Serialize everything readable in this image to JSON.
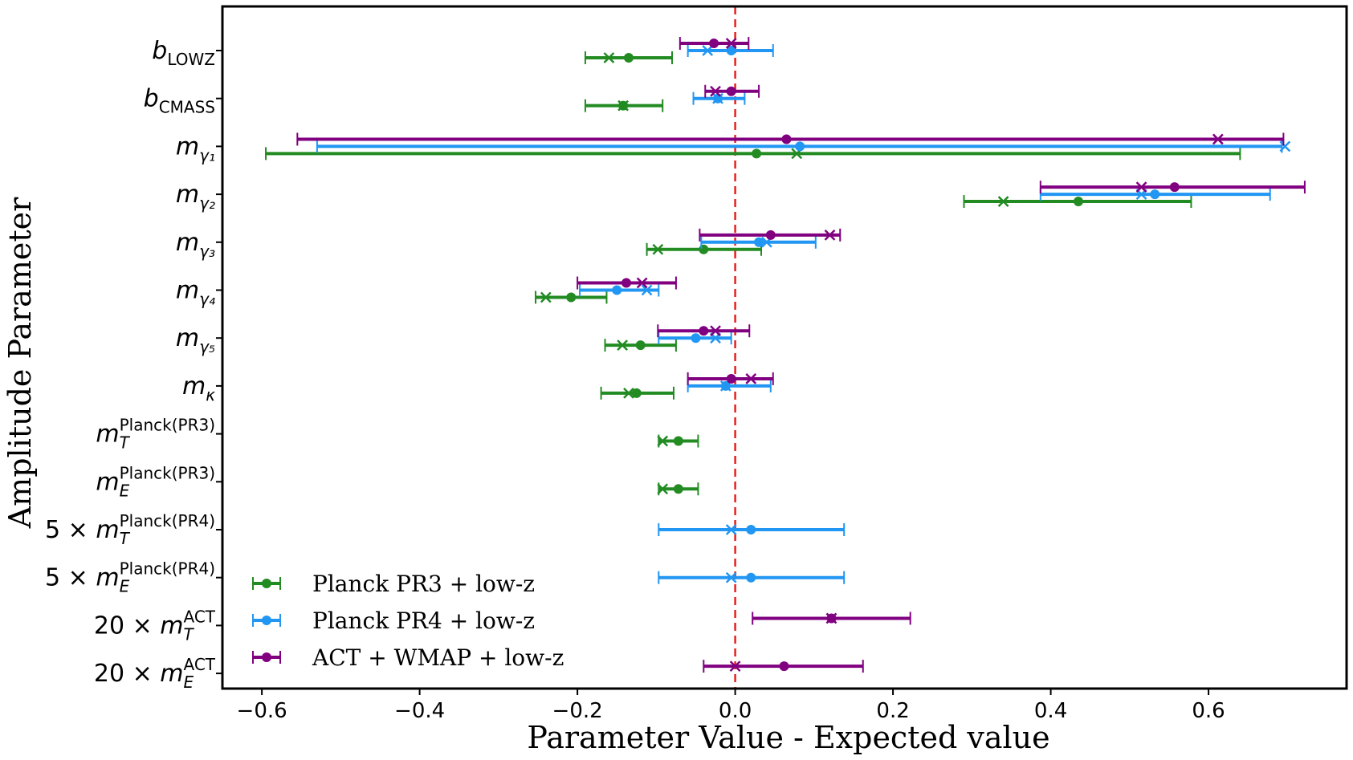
{
  "chart_data": {
    "type": "errorbar",
    "title": "",
    "xlabel": "Parameter Value - Expected value",
    "ylabel": "Amplitude Parameter",
    "xlim": [
      -0.65,
      0.775
    ],
    "xticks": [
      -0.6,
      -0.4,
      -0.2,
      0.0,
      0.2,
      0.4,
      0.6
    ],
    "xtick_labels": [
      "−0.6",
      "−0.4",
      "−0.2",
      "0.0",
      "0.2",
      "0.4",
      "0.6"
    ],
    "reference_line": {
      "x": 0.0,
      "style": "dashed",
      "color": "#e8201b"
    },
    "legend_position": "bottom-left",
    "categories": [
      {
        "id": "bLOWZ",
        "prefix": "",
        "base": "b",
        "base_italic": true,
        "sub": "LOWZ",
        "sub_italic": false,
        "sup": ""
      },
      {
        "id": "bCMASS",
        "prefix": "",
        "base": "b",
        "base_italic": true,
        "sub": "CMASS",
        "sub_italic": false,
        "sup": ""
      },
      {
        "id": "mg1",
        "prefix": "",
        "base": "m",
        "base_italic": true,
        "sub": "γ₁",
        "sub_italic": true,
        "sup": ""
      },
      {
        "id": "mg2",
        "prefix": "",
        "base": "m",
        "base_italic": true,
        "sub": "γ₂",
        "sub_italic": true,
        "sup": ""
      },
      {
        "id": "mg3",
        "prefix": "",
        "base": "m",
        "base_italic": true,
        "sub": "γ₃",
        "sub_italic": true,
        "sup": ""
      },
      {
        "id": "mg4",
        "prefix": "",
        "base": "m",
        "base_italic": true,
        "sub": "γ₄",
        "sub_italic": true,
        "sup": ""
      },
      {
        "id": "mg5",
        "prefix": "",
        "base": "m",
        "base_italic": true,
        "sub": "γ₅",
        "sub_italic": true,
        "sup": ""
      },
      {
        "id": "mk",
        "prefix": "",
        "base": "m",
        "base_italic": true,
        "sub": "κ",
        "sub_italic": true,
        "sup": ""
      },
      {
        "id": "mT_PR3",
        "prefix": "",
        "base": "m",
        "base_italic": true,
        "sub": "T",
        "sub_italic": true,
        "sup": "Planck(PR3)"
      },
      {
        "id": "mE_PR3",
        "prefix": "",
        "base": "m",
        "base_italic": true,
        "sub": "E",
        "sub_italic": true,
        "sup": "Planck(PR3)"
      },
      {
        "id": "mT_PR4",
        "prefix": "5 × ",
        "base": "m",
        "base_italic": true,
        "sub": "T",
        "sub_italic": true,
        "sup": "Planck(PR4)"
      },
      {
        "id": "mE_PR4",
        "prefix": "5 × ",
        "base": "m",
        "base_italic": true,
        "sub": "E",
        "sub_italic": true,
        "sup": "Planck(PR4)"
      },
      {
        "id": "mT_ACT",
        "prefix": "20 × ",
        "base": "m",
        "base_italic": true,
        "sub": "T",
        "sub_italic": true,
        "sup": "ACT"
      },
      {
        "id": "mE_ACT",
        "prefix": "20 × ",
        "base": "m",
        "base_italic": true,
        "sub": "E",
        "sub_italic": true,
        "sup": "ACT"
      }
    ],
    "series": [
      {
        "name": "Planck PR3 + low-z",
        "color": "#228b22",
        "offset_rows": 0.25,
        "points": [
          {
            "cat": 0,
            "mean": -0.135,
            "lo": -0.19,
            "hi": -0.08,
            "best": -0.16
          },
          {
            "cat": 1,
            "mean": -0.142,
            "lo": -0.19,
            "hi": -0.092,
            "best": -0.142
          },
          {
            "cat": 2,
            "mean": 0.027,
            "lo": -0.595,
            "hi": 0.64,
            "best": 0.078
          },
          {
            "cat": 3,
            "mean": 0.435,
            "lo": 0.29,
            "hi": 0.578,
            "best": 0.34
          },
          {
            "cat": 4,
            "mean": -0.04,
            "lo": -0.112,
            "hi": 0.033,
            "best": -0.098
          },
          {
            "cat": 5,
            "mean": -0.208,
            "lo": -0.253,
            "hi": -0.163,
            "best": -0.24
          },
          {
            "cat": 6,
            "mean": -0.12,
            "lo": -0.165,
            "hi": -0.075,
            "best": -0.143
          },
          {
            "cat": 7,
            "mean": -0.125,
            "lo": -0.17,
            "hi": -0.078,
            "best": -0.135
          },
          {
            "cat": 8,
            "mean": -0.072,
            "lo": -0.097,
            "hi": -0.047,
            "best": -0.092
          },
          {
            "cat": 9,
            "mean": -0.072,
            "lo": -0.097,
            "hi": -0.047,
            "best": -0.092
          }
        ]
      },
      {
        "name": "Planck PR4 + low-z",
        "color": "#2196f3",
        "offset_rows": 0.0,
        "points": [
          {
            "cat": 0,
            "mean": -0.005,
            "lo": -0.06,
            "hi": 0.048,
            "best": -0.035
          },
          {
            "cat": 1,
            "mean": -0.022,
            "lo": -0.053,
            "hi": 0.012,
            "best": -0.022
          },
          {
            "cat": 2,
            "mean": 0.082,
            "lo": -0.53,
            "hi": 0.693,
            "best": 0.697
          },
          {
            "cat": 3,
            "mean": 0.532,
            "lo": 0.387,
            "hi": 0.678,
            "best": 0.515
          },
          {
            "cat": 4,
            "mean": 0.03,
            "lo": -0.043,
            "hi": 0.102,
            "best": 0.04
          },
          {
            "cat": 5,
            "mean": -0.15,
            "lo": -0.197,
            "hi": -0.097,
            "best": -0.112
          },
          {
            "cat": 6,
            "mean": -0.05,
            "lo": -0.097,
            "hi": -0.005,
            "best": -0.025
          },
          {
            "cat": 7,
            "mean": -0.012,
            "lo": -0.06,
            "hi": 0.045,
            "best": -0.012
          },
          {
            "cat": 10,
            "mean": 0.02,
            "lo": -0.097,
            "hi": 0.138,
            "best": -0.005
          },
          {
            "cat": 11,
            "mean": 0.02,
            "lo": -0.097,
            "hi": 0.138,
            "best": -0.005
          }
        ]
      },
      {
        "name": "ACT + WMAP + low-z",
        "color": "#800080",
        "offset_rows": -0.25,
        "points": [
          {
            "cat": 0,
            "mean": -0.027,
            "lo": -0.07,
            "hi": 0.017,
            "best": -0.005
          },
          {
            "cat": 1,
            "mean": -0.005,
            "lo": -0.038,
            "hi": 0.03,
            "best": -0.025
          },
          {
            "cat": 2,
            "mean": 0.065,
            "lo": -0.555,
            "hi": 0.695,
            "best": 0.612
          },
          {
            "cat": 3,
            "mean": 0.557,
            "lo": 0.387,
            "hi": 0.722,
            "best": 0.515
          },
          {
            "cat": 4,
            "mean": 0.045,
            "lo": -0.045,
            "hi": 0.133,
            "best": 0.12
          },
          {
            "cat": 5,
            "mean": -0.138,
            "lo": -0.2,
            "hi": -0.075,
            "best": -0.118
          },
          {
            "cat": 6,
            "mean": -0.04,
            "lo": -0.098,
            "hi": 0.018,
            "best": -0.025
          },
          {
            "cat": 7,
            "mean": -0.005,
            "lo": -0.06,
            "hi": 0.048,
            "best": 0.02
          },
          {
            "cat": 12,
            "mean": 0.122,
            "lo": 0.022,
            "hi": 0.222,
            "best": 0.122
          },
          {
            "cat": 13,
            "mean": 0.062,
            "lo": -0.04,
            "hi": 0.162,
            "best": 0.0
          }
        ]
      }
    ]
  }
}
